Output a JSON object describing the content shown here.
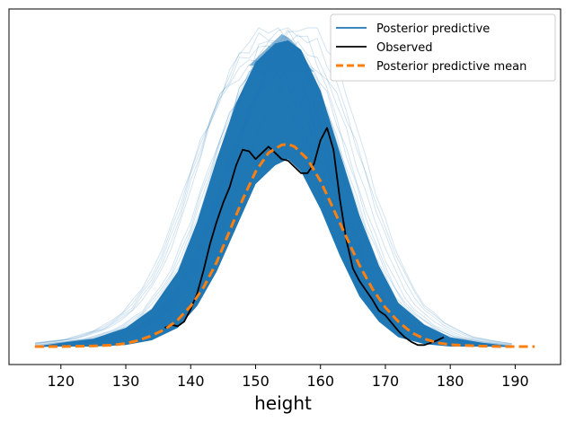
{
  "chart_data": {
    "type": "line",
    "title": "",
    "xlabel": "height",
    "ylabel": "",
    "xlim": [
      112,
      197
    ],
    "ylim": [
      0,
      1
    ],
    "xticks": [
      120,
      130,
      140,
      150,
      160,
      170,
      180,
      190
    ],
    "legend_position": "top-right",
    "grid": false,
    "colors": {
      "posterior_predictive": "#1f77b4",
      "observed": "#000000",
      "posterior_predictive_mean": "#ff7f0e"
    },
    "series": [
      {
        "name": "Posterior predictive",
        "style": "band",
        "x": [
          116,
          120,
          125,
          130,
          134,
          138,
          141,
          144,
          147,
          150,
          153,
          155,
          157,
          160,
          163,
          166,
          169,
          172,
          176,
          180,
          185,
          190
        ],
        "upper": [
          0.0,
          0.012,
          0.025,
          0.06,
          0.12,
          0.24,
          0.4,
          0.6,
          0.78,
          0.91,
          0.97,
          0.98,
          0.95,
          0.82,
          0.62,
          0.42,
          0.26,
          0.14,
          0.07,
          0.03,
          0.012,
          0.0
        ],
        "lower": [
          0.0,
          0.0,
          0.0,
          0.005,
          0.02,
          0.06,
          0.13,
          0.24,
          0.38,
          0.52,
          0.58,
          0.6,
          0.56,
          0.44,
          0.29,
          0.16,
          0.08,
          0.03,
          0.008,
          0.0,
          0.0,
          0.0
        ],
        "peaks_x": [
          150,
          152,
          154,
          155,
          156,
          157,
          158
        ],
        "peaks_y": [
          0.92,
          0.96,
          1.0,
          0.99,
          0.97,
          0.94,
          0.9
        ]
      },
      {
        "name": "Observed",
        "style": "solid",
        "x": [
          136,
          137,
          138,
          139,
          140,
          141,
          142,
          143,
          144,
          145,
          146,
          147,
          148,
          149,
          150,
          151,
          152,
          153,
          154,
          155,
          156,
          157,
          158,
          159,
          160,
          161,
          162,
          163,
          164,
          165,
          166,
          167,
          168,
          169,
          170,
          171,
          172,
          173,
          174,
          175,
          176,
          177,
          178,
          179
        ],
        "y": [
          0.06,
          0.07,
          0.06,
          0.08,
          0.12,
          0.17,
          0.25,
          0.34,
          0.4,
          0.45,
          0.49,
          0.56,
          0.64,
          0.61,
          0.6,
          0.62,
          0.64,
          0.62,
          0.6,
          0.59,
          0.57,
          0.55,
          0.55,
          0.58,
          0.66,
          0.72,
          0.62,
          0.45,
          0.33,
          0.24,
          0.21,
          0.18,
          0.15,
          0.11,
          0.1,
          0.07,
          0.05,
          0.03,
          0.01,
          0.0,
          0.0,
          0.01,
          0.02,
          0.03
        ],
        "smooth_y": [
          0.06,
          0.07,
          0.065,
          0.08,
          0.12,
          0.17,
          0.245,
          0.33,
          0.4,
          0.46,
          0.51,
          0.58,
          0.63,
          0.625,
          0.6,
          0.62,
          0.64,
          0.62,
          0.6,
          0.595,
          0.575,
          0.555,
          0.555,
          0.585,
          0.66,
          0.7,
          0.63,
          0.47,
          0.34,
          0.25,
          0.21,
          0.18,
          0.15,
          0.115,
          0.1,
          0.075,
          0.05,
          0.03,
          0.015,
          0.005,
          0.005,
          0.012,
          0.02,
          0.03
        ]
      },
      {
        "name": "Posterior predictive mean",
        "style": "dashed",
        "x": [
          116,
          120,
          125,
          128,
          130,
          132,
          134,
          136,
          138,
          140,
          142,
          144,
          146,
          148,
          150,
          152,
          154,
          155,
          156,
          158,
          160,
          162,
          164,
          166,
          168,
          170,
          172,
          174,
          176,
          178,
          180,
          184,
          188,
          193
        ],
        "y": [
          0.0,
          0.0,
          0.002,
          0.005,
          0.01,
          0.02,
          0.035,
          0.055,
          0.085,
          0.13,
          0.19,
          0.27,
          0.37,
          0.47,
          0.56,
          0.62,
          0.645,
          0.648,
          0.64,
          0.6,
          0.53,
          0.44,
          0.35,
          0.26,
          0.185,
          0.125,
          0.08,
          0.045,
          0.025,
          0.012,
          0.006,
          0.002,
          0.0,
          0.0
        ]
      }
    ]
  }
}
